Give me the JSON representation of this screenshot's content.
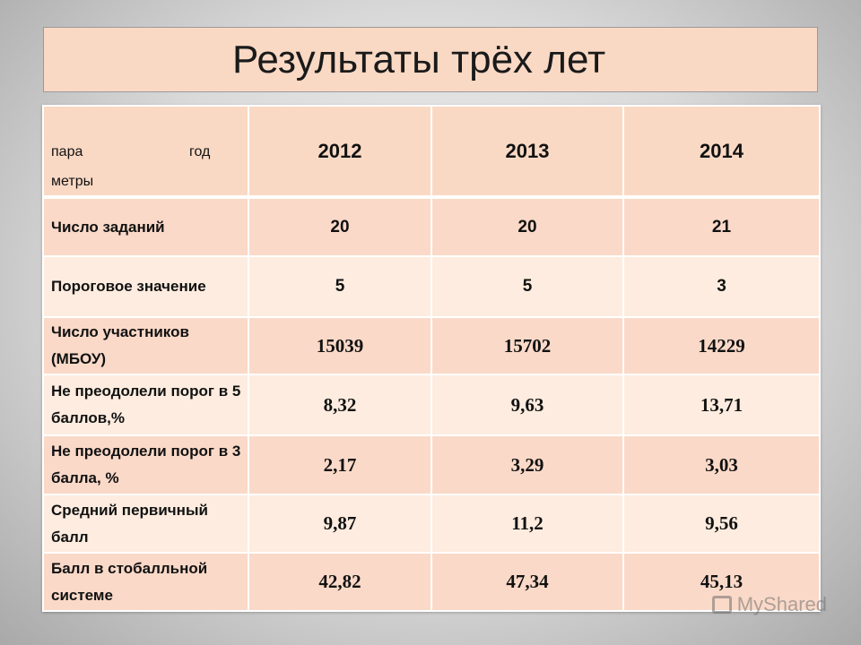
{
  "title": "Результаты трёх лет",
  "table": {
    "corner": {
      "a": "пара",
      "b": "год",
      "c": "метры"
    },
    "years": [
      "2012",
      "2013",
      "2014"
    ],
    "rows": [
      {
        "label": "Число заданий",
        "values": [
          "20",
          "20",
          "21"
        ]
      },
      {
        "label": "Пороговое значение",
        "values": [
          "5",
          "5",
          "3"
        ]
      },
      {
        "label": "Число участников (МБОУ)",
        "values": [
          "15039",
          "15702",
          "14229"
        ]
      },
      {
        "label": "Не преодолели порог в 5 баллов,%",
        "values": [
          "8,32",
          "9,63",
          "13,71"
        ]
      },
      {
        "label": "Не преодолели порог в 3 балла, %",
        "values": [
          "2,17",
          "3,29",
          "3,03"
        ]
      },
      {
        "label": "Средний первичный балл",
        "values": [
          "9,87",
          "11,2",
          "9,56"
        ]
      },
      {
        "label": "Балл в стобалльной системе",
        "values": [
          "42,82",
          "47,34",
          "45,13"
        ]
      }
    ]
  },
  "watermark": "MyShared"
}
